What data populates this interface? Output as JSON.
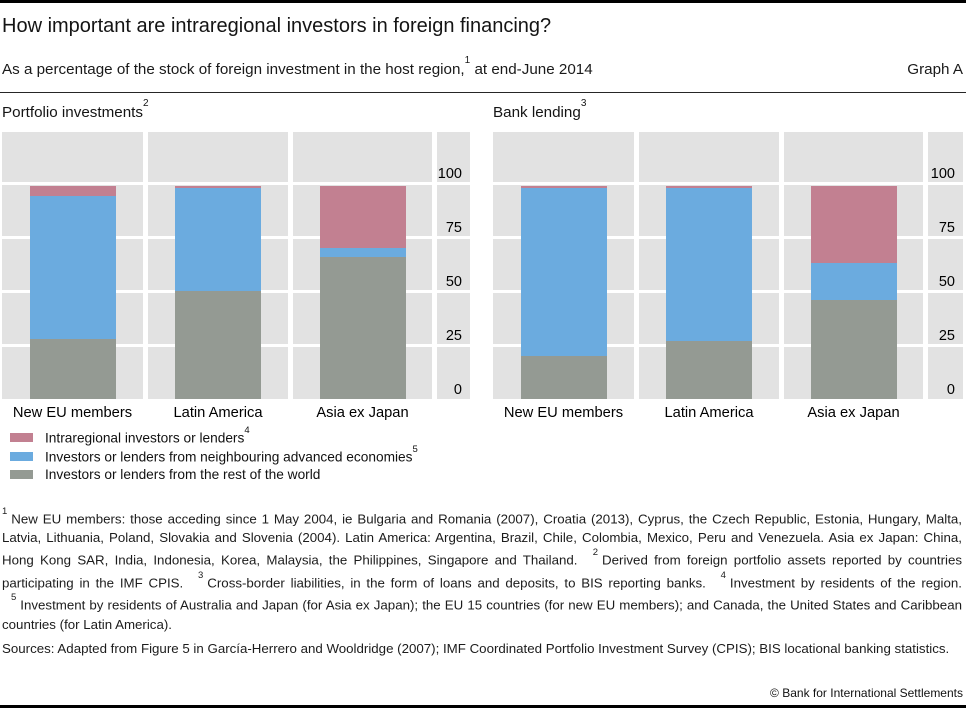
{
  "header": {
    "title": "How important are intraregional investors in foreign financing?",
    "subtitle_part1": "As a percentage of the stock of foreign investment in the host region,",
    "subtitle_sup": "1",
    "subtitle_part2": " at end-June 2014",
    "graph_label": "Graph A"
  },
  "chart_data": [
    {
      "type": "bar",
      "stacked": true,
      "title": "Portfolio investments",
      "title_sup": "2",
      "categories": [
        "New EU members",
        "Latin America",
        "Asia ex Japan"
      ],
      "series": [
        {
          "name": "Intraregional investors or lenders",
          "color": "#c28091",
          "values": [
            5,
            1,
            29
          ]
        },
        {
          "name": "Investors or lenders from neighbouring advanced economies",
          "color": "#6babdf",
          "values": [
            66,
            48,
            4
          ]
        },
        {
          "name": "Investors or lenders from the rest of the world",
          "color": "#949a93",
          "values": [
            28,
            50,
            66
          ]
        }
      ],
      "stack_order": "last series at bottom",
      "ylim": [
        0,
        100
      ],
      "yticks": [
        0,
        25,
        50,
        75,
        100
      ],
      "ytick_side": "right",
      "grid": true
    },
    {
      "type": "bar",
      "stacked": true,
      "title": "Bank lending",
      "title_sup": "3",
      "categories": [
        "New EU members",
        "Latin America",
        "Asia ex Japan"
      ],
      "series": [
        {
          "name": "Intraregional investors or lenders",
          "color": "#c28091",
          "values": [
            1,
            1,
            36
          ]
        },
        {
          "name": "Investors or lenders from neighbouring advanced economies",
          "color": "#6babdf",
          "values": [
            78,
            71,
            17
          ]
        },
        {
          "name": "Investors or lenders from the rest of the world",
          "color": "#949a93",
          "values": [
            20,
            27,
            46
          ]
        }
      ],
      "stack_order": "last series at bottom",
      "ylim": [
        0,
        100
      ],
      "yticks": [
        0,
        25,
        50,
        75,
        100
      ],
      "ytick_side": "right",
      "grid": true
    }
  ],
  "legend": [
    {
      "label": "Intraregional investors or lenders",
      "sup": "4",
      "color": "#c28091"
    },
    {
      "label": "Investors or lenders from neighbouring advanced economies",
      "sup": "5",
      "color": "#6babdf"
    },
    {
      "label": "Investors or lenders from the rest of the world",
      "sup": "",
      "color": "#949a93"
    }
  ],
  "footnotes": [
    {
      "sup": "1",
      "text": "New EU members: those acceding since 1 May 2004, ie Bulgaria and Romania (2007), Croatia (2013), Cyprus, the Czech Republic, Estonia, Hungary, Malta, Latvia, Lithuania, Poland, Slovakia and Slovenia (2004). Latin America: Argentina, Brazil, Chile, Colombia, Mexico, Peru and Venezuela. Asia ex Japan: China, Hong Kong SAR, India, Indonesia, Korea, Malaysia, the Philippines, Singapore and Thailand."
    },
    {
      "sup": "2",
      "text": "Derived from foreign portfolio assets reported by countries participating in the IMF CPIS."
    },
    {
      "sup": "3",
      "text": "Cross-border liabilities, in the form of loans and deposits, to BIS reporting banks."
    },
    {
      "sup": "4",
      "text": "Investment by residents of the region."
    },
    {
      "sup": "5",
      "text": "Investment by residents of Australia and Japan (for Asia ex Japan); the EU 15 countries (for new EU members); and Canada, the United States and Caribbean countries (for Latin America)."
    }
  ],
  "sources": {
    "text": "Sources: Adapted from Figure 5 in García-Herrero and Wooldridge (2007); IMF Coordinated Portfolio Investment Survey (CPIS); BIS locational banking statistics."
  },
  "footer": {
    "copyright": "© Bank for International Settlements"
  },
  "colors": {
    "intraregional": "#c28091",
    "neighbouring_advanced": "#6babdf",
    "rest_of_world": "#949a93",
    "plot_background": "#e2e2e2",
    "gridline": "#ffffff"
  }
}
